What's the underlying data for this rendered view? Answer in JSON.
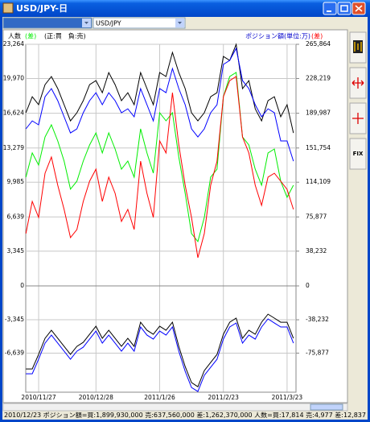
{
  "window": {
    "title": "USD/JPY-日",
    "dropdown": "USD/JPY",
    "fix_button": "FIX"
  },
  "chart_data": [
    {
      "type": "line",
      "y_label": "人数",
      "y_label_mark": "(差)",
      "note": "(正:買　負:売)",
      "y2_label": "ポジション額(単位:万)",
      "y2_label_mark": "(差)",
      "ylim": [
        0,
        23264
      ],
      "y2lim": [
        0,
        265864
      ],
      "yticks": [
        {
          "value": 23264,
          "label": "23,264"
        },
        {
          "value": 19970,
          "label": "19,970"
        },
        {
          "value": 16624,
          "label": "16,624"
        },
        {
          "value": 13279,
          "label": "13,279"
        },
        {
          "value": 9985,
          "label": "9,985"
        },
        {
          "value": 6639,
          "label": "6,639"
        },
        {
          "value": 3345,
          "label": "3,345"
        },
        0
      ],
      "y2ticks": [
        {
          "value": 265864,
          "label": "265,864"
        },
        {
          "value": 228219,
          "label": "228,219"
        },
        {
          "value": 189987,
          "label": "189,987"
        },
        {
          "value": 151754,
          "label": "151,754"
        },
        {
          "value": 114109,
          "label": "114,109"
        },
        {
          "value": 75877,
          "label": "75,877"
        },
        {
          "value": 38232,
          "label": "38,232"
        },
        0
      ],
      "grid": true,
      "series": [
        {
          "color": "#000000",
          "axis": "y2",
          "values": [
            190500,
            208200,
            199400,
            221500,
            230400,
            217100,
            199400,
            181600,
            190500,
            203800,
            221500,
            225900,
            212600,
            234800,
            221500,
            203800,
            212600,
            199400,
            234800,
            217100,
            199400,
            234800,
            230400,
            256900,
            234800,
            217100,
            190500,
            181600,
            190500,
            208200,
            212600,
            252500,
            248100,
            265800,
            217100,
            225900,
            194900,
            181600,
            203800,
            208200,
            186100,
            199400,
            168300
          ]
        },
        {
          "color": "#0000ff",
          "axis": "y2",
          "values": [
            172800,
            181600,
            177200,
            208200,
            217100,
            203800,
            186100,
            168300,
            172800,
            190500,
            203800,
            212600,
            199400,
            212600,
            203800,
            190500,
            194900,
            186100,
            217100,
            199400,
            181600,
            217100,
            212600,
            239200,
            217100,
            199400,
            172800,
            163900,
            172800,
            190500,
            199400,
            243700,
            248100,
            261400,
            225900,
            217100,
            199400,
            186100,
            194900,
            190500,
            159500,
            159500,
            137300
          ]
        },
        {
          "color": "#00ee00",
          "values": [
            10470,
            12800,
            11630,
            14350,
            15510,
            13960,
            12020,
            9310,
            10080,
            12020,
            13570,
            14730,
            12800,
            14730,
            13180,
            11240,
            12020,
            10470,
            15120,
            12800,
            10860,
            16670,
            15900,
            16670,
            12410,
            8920,
            5040,
            4270,
            6590,
            10470,
            11240,
            18220,
            20160,
            20550,
            14350,
            13570,
            11240,
            9690,
            12800,
            13180,
            10080,
            8530,
            9690
          ]
        },
        {
          "color": "#ff0000",
          "axis": "y2",
          "values": [
            57600,
            93000,
            75300,
            124000,
            141800,
            110800,
            84200,
            53200,
            62000,
            93000,
            115200,
            128500,
            93000,
            119600,
            101900,
            70900,
            84200,
            62000,
            137300,
            101900,
            75300,
            159500,
            146200,
            212600,
            155100,
            110800,
            75300,
            31000,
            57600,
            110800,
            137300,
            208200,
            225900,
            230400,
            163900,
            146200,
            110800,
            88600,
            119600,
            124000,
            115200,
            106300,
            84200
          ]
        }
      ]
    },
    {
      "type": "line",
      "categories": [
        null,
        null,
        "2010/11/27",
        null,
        null,
        null,
        null,
        null,
        null,
        null,
        null,
        "2010/12/28",
        null,
        null,
        null,
        null,
        null,
        null,
        null,
        null,
        null,
        "2011/1/26",
        null,
        null,
        null,
        null,
        null,
        null,
        null,
        null,
        null,
        "2011/2/23",
        null,
        null,
        null,
        null,
        null,
        null,
        null,
        null,
        null,
        "2011/3/23",
        null
      ],
      "ylim": [
        -10500,
        0
      ],
      "y2lim": [
        -120000,
        0
      ],
      "yticks": [
        {
          "value": -3345,
          "label": "-3,345"
        },
        {
          "value": -6639,
          "label": "-6,639"
        }
      ],
      "y2ticks": [
        {
          "value": -38232,
          "label": "-38,232"
        },
        {
          "value": -75877,
          "label": "-75,877"
        }
      ],
      "grid": true,
      "series": [
        {
          "color": "#000000",
          "axis": "y2",
          "values": [
            -93700,
            -93700,
            -77400,
            -59200,
            -50100,
            -59200,
            -68300,
            -77400,
            -68300,
            -63700,
            -54600,
            -45500,
            -59200,
            -50100,
            -59200,
            -68300,
            -59200,
            -68300,
            -41000,
            -50100,
            -54600,
            -45500,
            -50100,
            -41000,
            -68300,
            -91000,
            -109200,
            -113800,
            -95600,
            -86500,
            -77400,
            -54600,
            -41000,
            -36400,
            -59200,
            -50100,
            -54600,
            -41000,
            -31900,
            -36400,
            -41000,
            -41000,
            -59200
          ]
        },
        {
          "color": "#0000ff",
          "axis": "y2",
          "values": [
            -99200,
            -99200,
            -82800,
            -64600,
            -55500,
            -64600,
            -73700,
            -82800,
            -73700,
            -69200,
            -60100,
            -51000,
            -64600,
            -55500,
            -64600,
            -73700,
            -64600,
            -73700,
            -46400,
            -55500,
            -60100,
            -51000,
            -55500,
            -46400,
            -73700,
            -96500,
            -114700,
            -119200,
            -101000,
            -91900,
            -82800,
            -60100,
            -46400,
            -41900,
            -64600,
            -55500,
            -60100,
            -46400,
            -37300,
            -41900,
            -46400,
            -46400,
            -64600
          ]
        }
      ]
    }
  ],
  "status": "2010/12/23  ポジション額=買:1,899,930,000 売:637,560,000 差:1,262,370,000  人数=買:17,814 売:4,977 差:12,837"
}
